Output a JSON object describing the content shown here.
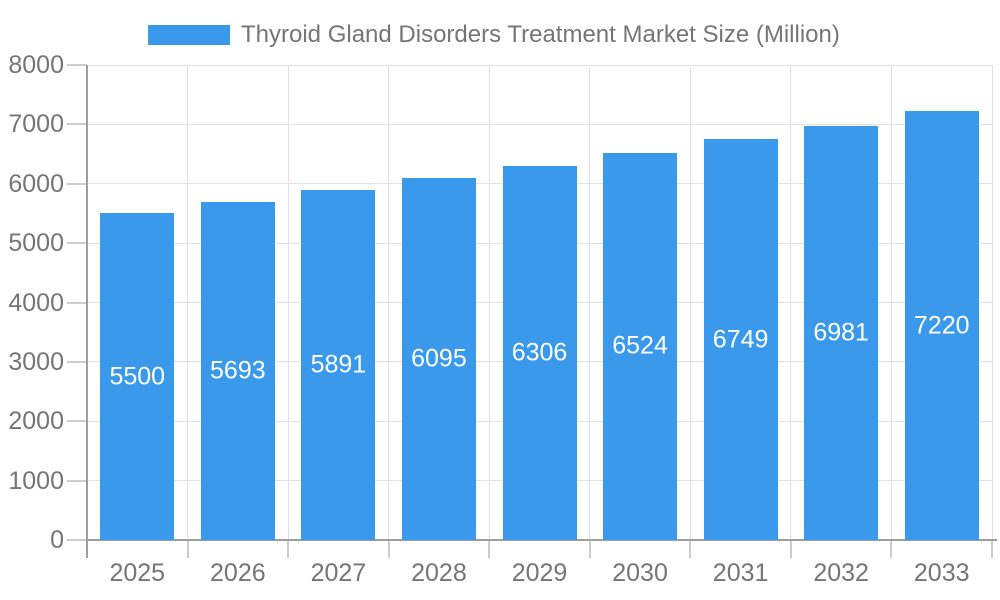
{
  "chart_data": {
    "type": "bar",
    "title": "Thyroid Gland Disorders Treatment Market Size (Million)",
    "legend_entries": [
      "Thyroid Gland Disorders Treatment Market Size (Million)"
    ],
    "legend_position": "top",
    "categories": [
      "2025",
      "2026",
      "2027",
      "2028",
      "2029",
      "2030",
      "2031",
      "2032",
      "2033"
    ],
    "values": [
      5500,
      5693,
      5891,
      6095,
      6306,
      6524,
      6749,
      6981,
      7220
    ],
    "bar_value_labels": [
      "5500",
      "5693",
      "5891",
      "6095",
      "6306",
      "6524",
      "6749",
      "6981",
      "7220"
    ],
    "xlabel": "",
    "ylabel": "",
    "ylim": [
      0,
      8000
    ],
    "y_ticks": [
      0,
      1000,
      2000,
      3000,
      4000,
      5000,
      6000,
      7000,
      8000
    ],
    "grid": true,
    "colors": {
      "bar": "#3b99ec",
      "bar_label": "#ffffff",
      "axis_text": "#757575",
      "axis_line": "#9e9e9e",
      "tick": "#cccccc",
      "gridline": "#e1e1e1",
      "background": "#ffffff"
    }
  }
}
